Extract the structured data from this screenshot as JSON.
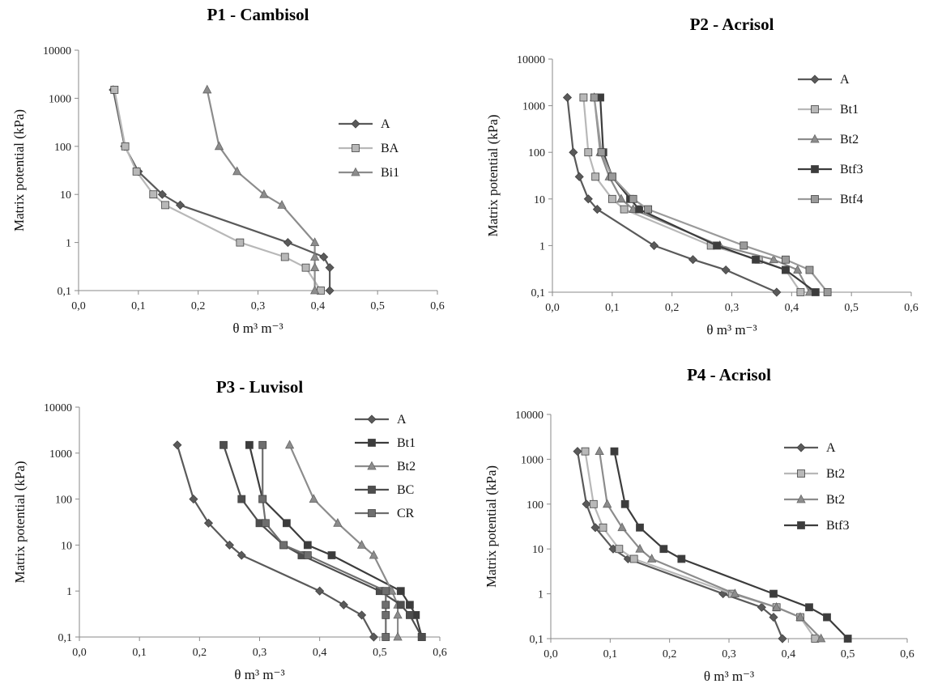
{
  "chart_data": [
    {
      "type": "line",
      "title": "P1 - Cambisol",
      "xlabel": "θ m³ m⁻³",
      "ylabel": "Matrix  potential  (kPa)",
      "xlim": [
        0,
        0.6
      ],
      "ylim": [
        0.1,
        10000
      ],
      "yscale": "log",
      "x_ticks": [
        "0,0",
        "0,1",
        "0,2",
        "0,3",
        "0,4",
        "0,5",
        "0,6"
      ],
      "y_ticks": [
        "0,1",
        "1",
        "10",
        "100",
        "1000",
        "10000"
      ],
      "legend_position": "right",
      "series": [
        {
          "name": "A",
          "color": "#5a5a5a",
          "marker": "diamond",
          "points": [
            [
              0.42,
              0.1
            ],
            [
              0.42,
              0.3
            ],
            [
              0.41,
              0.5
            ],
            [
              0.35,
              1
            ],
            [
              0.17,
              6
            ],
            [
              0.14,
              10
            ],
            [
              0.1,
              30
            ],
            [
              0.077,
              100
            ],
            [
              0.058,
              1500
            ]
          ]
        },
        {
          "name": "BA",
          "color": "#b8b8b8",
          "marker": "square",
          "points": [
            [
              0.405,
              0.1
            ],
            [
              0.38,
              0.3
            ],
            [
              0.345,
              0.5
            ],
            [
              0.27,
              1
            ],
            [
              0.145,
              6
            ],
            [
              0.125,
              10
            ],
            [
              0.097,
              30
            ],
            [
              0.078,
              100
            ],
            [
              0.06,
              1500
            ]
          ]
        },
        {
          "name": "Bi1",
          "color": "#8c8c8c",
          "marker": "triangle",
          "points": [
            [
              0.395,
              0.1
            ],
            [
              0.395,
              0.3
            ],
            [
              0.395,
              0.5
            ],
            [
              0.395,
              1
            ],
            [
              0.34,
              6
            ],
            [
              0.31,
              10
            ],
            [
              0.265,
              30
            ],
            [
              0.235,
              100
            ],
            [
              0.215,
              1500
            ]
          ]
        }
      ]
    },
    {
      "type": "line",
      "title": "P2 - Acrisol",
      "xlabel": "θ m³ m⁻³",
      "ylabel": "Matrix  potential  (kPa)",
      "xlim": [
        0,
        0.6
      ],
      "ylim": [
        0.1,
        10000
      ],
      "yscale": "log",
      "x_ticks": [
        "0,0",
        "0,1",
        "0,2",
        "0,3",
        "0,4",
        "0,5",
        "0,6"
      ],
      "y_ticks": [
        "0,1",
        "1",
        "10",
        "100",
        "1000",
        "10000"
      ],
      "legend_position": "right",
      "series": [
        {
          "name": "A",
          "color": "#5a5a5a",
          "marker": "diamond",
          "points": [
            [
              0.375,
              0.1
            ],
            [
              0.29,
              0.3
            ],
            [
              0.235,
              0.5
            ],
            [
              0.17,
              1
            ],
            [
              0.075,
              6
            ],
            [
              0.06,
              10
            ],
            [
              0.045,
              30
            ],
            [
              0.035,
              100
            ],
            [
              0.025,
              1500
            ]
          ]
        },
        {
          "name": "Bt1",
          "color": "#b8b8b8",
          "marker": "square",
          "points": [
            [
              0.415,
              0.1
            ],
            [
              0.39,
              0.3
            ],
            [
              0.345,
              0.5
            ],
            [
              0.265,
              1
            ],
            [
              0.12,
              6
            ],
            [
              0.1,
              10
            ],
            [
              0.072,
              30
            ],
            [
              0.06,
              100
            ],
            [
              0.052,
              1500
            ]
          ]
        },
        {
          "name": "Bt2",
          "color": "#8c8c8c",
          "marker": "triangle",
          "points": [
            [
              0.43,
              0.1
            ],
            [
              0.41,
              0.3
            ],
            [
              0.37,
              0.5
            ],
            [
              0.28,
              1
            ],
            [
              0.135,
              6
            ],
            [
              0.115,
              10
            ],
            [
              0.095,
              30
            ],
            [
              0.08,
              100
            ],
            [
              0.07,
              1500
            ]
          ]
        },
        {
          "name": "Btf3",
          "color": "#3c3c3c",
          "marker": "square",
          "points": [
            [
              0.44,
              0.1
            ],
            [
              0.39,
              0.3
            ],
            [
              0.34,
              0.5
            ],
            [
              0.275,
              1
            ],
            [
              0.145,
              6
            ],
            [
              0.13,
              10
            ],
            [
              0.1,
              30
            ],
            [
              0.085,
              100
            ],
            [
              0.08,
              1500
            ]
          ]
        },
        {
          "name": "Btf4",
          "color": "#9a9a9a",
          "marker": "square",
          "points": [
            [
              0.46,
              0.1
            ],
            [
              0.43,
              0.3
            ],
            [
              0.39,
              0.5
            ],
            [
              0.32,
              1
            ],
            [
              0.16,
              6
            ],
            [
              0.135,
              10
            ],
            [
              0.1,
              30
            ],
            [
              0.082,
              100
            ],
            [
              0.07,
              1500
            ]
          ]
        }
      ]
    },
    {
      "type": "line",
      "title": "P3 - Luvisol",
      "xlabel": "θ m³ m⁻³",
      "ylabel": "Matrix  potential  (kPa)",
      "xlim": [
        0,
        0.6
      ],
      "ylim": [
        0.1,
        10000
      ],
      "yscale": "log",
      "x_ticks": [
        "0,0",
        "0,1",
        "0,2",
        "0,3",
        "0,4",
        "0,5",
        "0,6"
      ],
      "y_ticks": [
        "0,1",
        "1",
        "10",
        "100",
        "1000",
        "10000"
      ],
      "legend_position": "top-right",
      "series": [
        {
          "name": "A",
          "color": "#5a5a5a",
          "marker": "diamond",
          "points": [
            [
              0.49,
              0.1
            ],
            [
              0.47,
              0.3
            ],
            [
              0.44,
              0.5
            ],
            [
              0.4,
              1
            ],
            [
              0.27,
              6
            ],
            [
              0.25,
              10
            ],
            [
              0.215,
              30
            ],
            [
              0.19,
              100
            ],
            [
              0.163,
              1500
            ]
          ]
        },
        {
          "name": "Bt1",
          "color": "#3c3c3c",
          "marker": "square",
          "points": [
            [
              0.57,
              0.1
            ],
            [
              0.56,
              0.3
            ],
            [
              0.55,
              0.5
            ],
            [
              0.535,
              1
            ],
            [
              0.42,
              6
            ],
            [
              0.38,
              10
            ],
            [
              0.345,
              30
            ],
            [
              0.305,
              100
            ],
            [
              0.283,
              1500
            ]
          ]
        },
        {
          "name": "Bt2",
          "color": "#8c8c8c",
          "marker": "triangle",
          "points": [
            [
              0.53,
              0.1
            ],
            [
              0.53,
              0.3
            ],
            [
              0.53,
              0.5
            ],
            [
              0.52,
              1
            ],
            [
              0.49,
              6
            ],
            [
              0.47,
              10
            ],
            [
              0.43,
              30
            ],
            [
              0.39,
              100
            ],
            [
              0.35,
              1500
            ]
          ]
        },
        {
          "name": "BC",
          "color": "#4e4e4e",
          "marker": "square",
          "points": [
            [
              0.57,
              0.1
            ],
            [
              0.55,
              0.3
            ],
            [
              0.535,
              0.5
            ],
            [
              0.5,
              1
            ],
            [
              0.37,
              6
            ],
            [
              0.34,
              10
            ],
            [
              0.3,
              30
            ],
            [
              0.27,
              100
            ],
            [
              0.24,
              1500
            ]
          ]
        },
        {
          "name": "CR",
          "color": "#6e6e6e",
          "marker": "square",
          "points": [
            [
              0.51,
              0.1
            ],
            [
              0.51,
              0.3
            ],
            [
              0.51,
              0.5
            ],
            [
              0.51,
              1
            ],
            [
              0.38,
              6
            ],
            [
              0.34,
              10
            ],
            [
              0.31,
              30
            ],
            [
              0.305,
              100
            ],
            [
              0.305,
              1500
            ]
          ]
        }
      ]
    },
    {
      "type": "line",
      "title": "P4 - Acrisol",
      "xlabel": "θ m³ m⁻³",
      "ylabel": "Matrix  potential  (kPa)",
      "xlim": [
        0,
        0.6
      ],
      "ylim": [
        0.1,
        10000
      ],
      "yscale": "log",
      "x_ticks": [
        "0,0",
        "0,1",
        "0,2",
        "0,3",
        "0,4",
        "0,5",
        "0,6"
      ],
      "y_ticks": [
        "0,1",
        "1",
        "10",
        "100",
        "1000",
        "10000"
      ],
      "legend_position": "top-right",
      "series": [
        {
          "name": "A",
          "color": "#5a5a5a",
          "marker": "diamond",
          "points": [
            [
              0.39,
              0.1
            ],
            [
              0.375,
              0.3
            ],
            [
              0.355,
              0.5
            ],
            [
              0.29,
              1
            ],
            [
              0.13,
              6
            ],
            [
              0.105,
              10
            ],
            [
              0.075,
              30
            ],
            [
              0.06,
              100
            ],
            [
              0.045,
              1500
            ]
          ]
        },
        {
          "name": "Bt2",
          "color": "#b8b8b8",
          "marker": "square",
          "points": [
            [
              0.445,
              0.1
            ],
            [
              0.42,
              0.3
            ],
            [
              0.38,
              0.5
            ],
            [
              0.305,
              1
            ],
            [
              0.14,
              6
            ],
            [
              0.115,
              10
            ],
            [
              0.088,
              30
            ],
            [
              0.072,
              100
            ],
            [
              0.058,
              1500
            ]
          ]
        },
        {
          "name": "Bt2",
          "color": "#8c8c8c",
          "marker": "triangle",
          "points": [
            [
              0.455,
              0.1
            ],
            [
              0.42,
              0.3
            ],
            [
              0.38,
              0.5
            ],
            [
              0.31,
              1
            ],
            [
              0.17,
              6
            ],
            [
              0.15,
              10
            ],
            [
              0.12,
              30
            ],
            [
              0.095,
              100
            ],
            [
              0.082,
              1500
            ]
          ]
        },
        {
          "name": "Btf3",
          "color": "#3c3c3c",
          "marker": "square",
          "points": [
            [
              0.5,
              0.1
            ],
            [
              0.465,
              0.3
            ],
            [
              0.435,
              0.5
            ],
            [
              0.375,
              1
            ],
            [
              0.22,
              6
            ],
            [
              0.19,
              10
            ],
            [
              0.15,
              30
            ],
            [
              0.125,
              100
            ],
            [
              0.107,
              1500
            ]
          ]
        }
      ]
    }
  ]
}
